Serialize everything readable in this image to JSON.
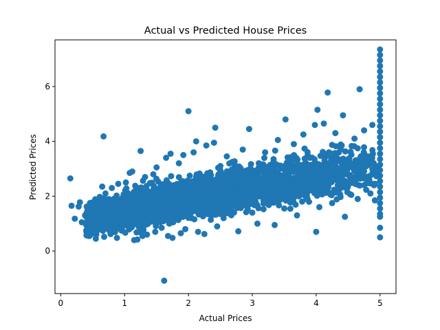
{
  "chart_data": {
    "type": "scatter",
    "title": "Actual vs Predicted House Prices",
    "xlabel": "Actual Prices",
    "ylabel": "Predicted Prices",
    "xlim": [
      -0.09,
      5.25
    ],
    "ylim": [
      -1.55,
      7.7
    ],
    "xticks": [
      0,
      1,
      2,
      3,
      4,
      5
    ],
    "yticks": [
      0,
      2,
      4,
      6
    ],
    "grid": false,
    "marker_color": "#1f77b4",
    "series": [
      {
        "name": "",
        "points": [
          [
            0.15,
            2.65
          ],
          [
            0.17,
            1.65
          ],
          [
            0.22,
            1.18
          ],
          [
            0.28,
            1.62
          ],
          [
            0.3,
            1.78
          ],
          [
            0.33,
            1.05
          ],
          [
            0.38,
            1.3
          ],
          [
            0.4,
            0.75
          ],
          [
            0.42,
            1.45
          ],
          [
            0.45,
            0.55
          ],
          [
            0.48,
            0.62
          ],
          [
            0.5,
            1.1
          ],
          [
            0.55,
            0.45
          ],
          [
            0.58,
            0.85
          ],
          [
            0.62,
            1.55
          ],
          [
            0.65,
            2.35
          ],
          [
            0.67,
            4.18
          ],
          [
            0.68,
            0.52
          ],
          [
            0.7,
            2.1
          ],
          [
            0.72,
            0.95
          ],
          [
            0.75,
            1.8
          ],
          [
            0.78,
            0.62
          ],
          [
            0.8,
            2.3
          ],
          [
            0.82,
            1.2
          ],
          [
            0.85,
            1.65
          ],
          [
            0.88,
            0.48
          ],
          [
            0.9,
            2.45
          ],
          [
            0.92,
            1.4
          ],
          [
            0.95,
            0.75
          ],
          [
            0.98,
            2.0
          ],
          [
            1.0,
            1.55
          ],
          [
            1.02,
            2.5
          ],
          [
            1.05,
            0.9
          ],
          [
            1.08,
            2.85
          ],
          [
            1.1,
            1.75
          ],
          [
            1.12,
            2.9
          ],
          [
            1.15,
            0.4
          ],
          [
            1.18,
            1.3
          ],
          [
            1.2,
            0.42
          ],
          [
            1.22,
            2.2
          ],
          [
            1.25,
            3.65
          ],
          [
            1.28,
            0.55
          ],
          [
            1.3,
            1.9
          ],
          [
            1.32,
            2.7
          ],
          [
            1.35,
            0.6
          ],
          [
            1.4,
            1.25
          ],
          [
            1.45,
            2.8
          ],
          [
            1.48,
            0.7
          ],
          [
            1.5,
            3.05
          ],
          [
            1.55,
            1.6
          ],
          [
            1.58,
            0.85
          ],
          [
            1.6,
            2.35
          ],
          [
            1.62,
            -1.08
          ],
          [
            1.65,
            3.4
          ],
          [
            1.68,
            0.55
          ],
          [
            1.7,
            1.0
          ],
          [
            1.72,
            3.55
          ],
          [
            1.75,
            0.48
          ],
          [
            1.78,
            2.1
          ],
          [
            1.8,
            1.15
          ],
          [
            1.85,
            3.2
          ],
          [
            1.88,
            0.65
          ],
          [
            1.9,
            1.85
          ],
          [
            1.92,
            3.5
          ],
          [
            1.95,
            0.8
          ],
          [
            2.0,
            5.1
          ],
          [
            2.02,
            2.75
          ],
          [
            2.05,
            1.2
          ],
          [
            2.08,
            3.6
          ],
          [
            2.12,
            4.0
          ],
          [
            2.15,
            0.7
          ],
          [
            2.18,
            1.55
          ],
          [
            2.2,
            2.6
          ],
          [
            2.25,
            0.62
          ],
          [
            2.28,
            3.85
          ],
          [
            2.3,
            1.35
          ],
          [
            2.35,
            2.2
          ],
          [
            2.4,
            3.95
          ],
          [
            2.42,
            4.5
          ],
          [
            2.45,
            0.9
          ],
          [
            2.48,
            1.75
          ],
          [
            2.5,
            3.1
          ],
          [
            2.55,
            1.2
          ],
          [
            2.58,
            2.45
          ],
          [
            2.6,
            3.45
          ],
          [
            2.65,
            1.45
          ],
          [
            2.7,
            1.65
          ],
          [
            2.75,
            2.9
          ],
          [
            2.78,
            0.72
          ],
          [
            2.8,
            1.95
          ],
          [
            2.85,
            3.7
          ],
          [
            2.9,
            2.3
          ],
          [
            2.95,
            4.45
          ],
          [
            3.0,
            1.4
          ],
          [
            3.05,
            2.65
          ],
          [
            3.08,
            1.0
          ],
          [
            3.1,
            3.2
          ],
          [
            3.15,
            2.0
          ],
          [
            3.2,
            3.6
          ],
          [
            3.25,
            1.7
          ],
          [
            3.3,
            2.8
          ],
          [
            3.35,
            0.95
          ],
          [
            3.4,
            4.05
          ],
          [
            3.45,
            2.25
          ],
          [
            3.5,
            1.55
          ],
          [
            3.52,
            4.8
          ],
          [
            3.55,
            3.1
          ],
          [
            3.6,
            2.05
          ],
          [
            3.65,
            3.9
          ],
          [
            3.7,
            1.3
          ],
          [
            3.75,
            2.7
          ],
          [
            3.8,
            4.25
          ],
          [
            3.85,
            1.9
          ],
          [
            3.9,
            3.4
          ],
          [
            3.95,
            2.4
          ],
          [
            3.98,
            4.6
          ],
          [
            4.0,
            0.7
          ],
          [
            4.02,
            5.15
          ],
          [
            4.05,
            1.6
          ],
          [
            4.1,
            3.0
          ],
          [
            4.12,
            4.65
          ],
          [
            4.15,
            2.2
          ],
          [
            4.18,
            5.78
          ],
          [
            4.2,
            3.6
          ],
          [
            4.25,
            1.75
          ],
          [
            4.3,
            4.3
          ],
          [
            4.35,
            2.55
          ],
          [
            4.4,
            3.85
          ],
          [
            4.42,
            4.95
          ],
          [
            4.45,
            1.25
          ],
          [
            4.5,
            3.3
          ],
          [
            4.55,
            2.05
          ],
          [
            4.6,
            4.1
          ],
          [
            4.65,
            1.9
          ],
          [
            4.68,
            5.9
          ],
          [
            4.7,
            2.8
          ],
          [
            4.75,
            4.4
          ],
          [
            4.8,
            3.45
          ],
          [
            4.85,
            2.1
          ],
          [
            4.88,
            4.6
          ],
          [
            4.92,
            1.85
          ],
          [
            4.95,
            3.0
          ],
          [
            5.0,
            7.35
          ],
          [
            5.0,
            7.15
          ],
          [
            5.0,
            6.95
          ],
          [
            5.0,
            6.75
          ],
          [
            5.0,
            6.55
          ],
          [
            5.0,
            6.35
          ],
          [
            5.0,
            6.15
          ],
          [
            5.0,
            5.95
          ],
          [
            5.0,
            5.75
          ],
          [
            5.0,
            5.55
          ],
          [
            5.0,
            5.35
          ],
          [
            5.0,
            5.15
          ],
          [
            5.0,
            4.95
          ],
          [
            5.0,
            4.75
          ],
          [
            5.0,
            4.55
          ],
          [
            5.0,
            4.35
          ],
          [
            5.0,
            4.15
          ],
          [
            5.0,
            3.95
          ],
          [
            5.0,
            3.75
          ],
          [
            5.0,
            3.55
          ],
          [
            5.0,
            3.35
          ],
          [
            5.0,
            3.15
          ],
          [
            5.0,
            2.95
          ],
          [
            5.0,
            2.75
          ],
          [
            5.0,
            2.55
          ],
          [
            5.0,
            2.35
          ],
          [
            5.0,
            2.15
          ],
          [
            5.0,
            1.95
          ],
          [
            5.0,
            1.75
          ],
          [
            5.0,
            1.55
          ],
          [
            5.0,
            1.35
          ],
          [
            5.0,
            1.25
          ],
          [
            5.0,
            0.85
          ],
          [
            5.0,
            0.5
          ]
        ]
      }
    ],
    "dense_cloud": [
      {
        "x_range": [
          0.4,
          1.0
        ],
        "y_center_at_start": 1.15,
        "y_center_at_end": 1.45,
        "y_spread": 0.45,
        "n": 520
      },
      {
        "x_range": [
          1.0,
          2.0
        ],
        "y_center_at_start": 1.45,
        "y_center_at_end": 1.95,
        "y_spread": 0.55,
        "n": 1100
      },
      {
        "x_range": [
          2.0,
          3.0
        ],
        "y_center_at_start": 1.95,
        "y_center_at_end": 2.35,
        "y_spread": 0.6,
        "n": 850
      },
      {
        "x_range": [
          3.0,
          4.0
        ],
        "y_center_at_start": 2.35,
        "y_center_at_end": 2.75,
        "y_spread": 0.65,
        "n": 480
      },
      {
        "x_range": [
          4.0,
          4.95
        ],
        "y_center_at_start": 2.75,
        "y_center_at_end": 3.05,
        "y_spread": 0.7,
        "n": 260
      }
    ]
  }
}
